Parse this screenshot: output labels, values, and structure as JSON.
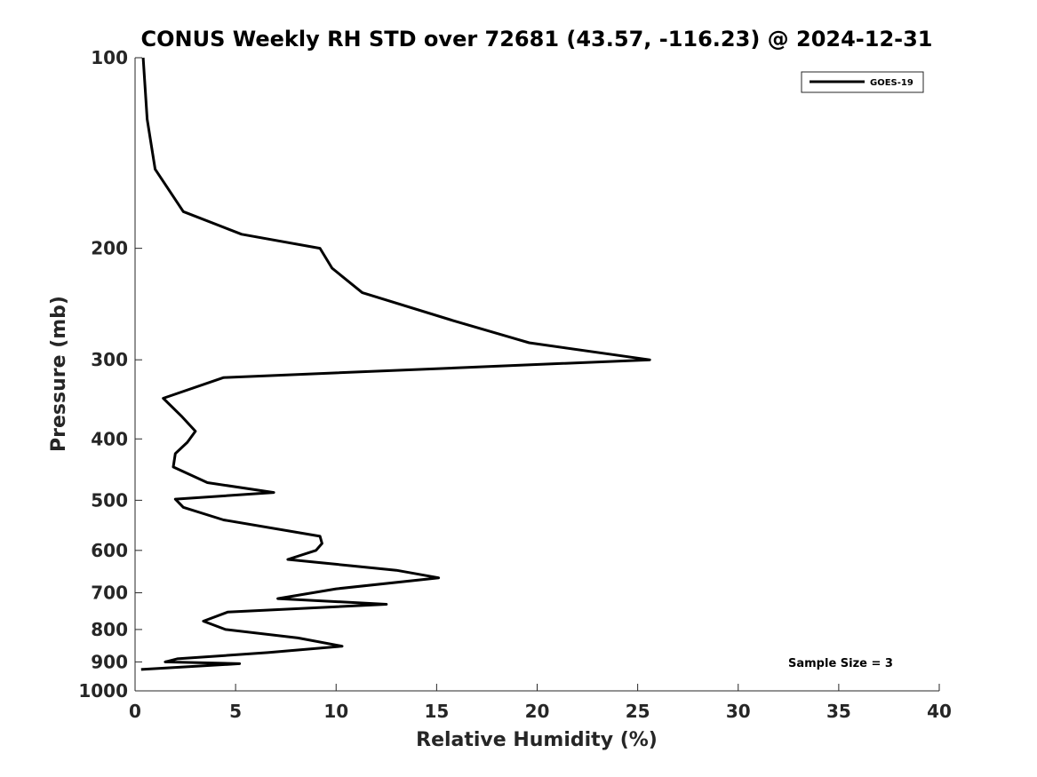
{
  "chart_data": {
    "type": "line",
    "title": "CONUS Weekly RH STD over 72681 (43.57, -116.23) @ 2024-12-31",
    "xlabel": "Relative Humidity (%)",
    "ylabel": "Pressure (mb)",
    "xlim": [
      0,
      40
    ],
    "ylim": [
      100,
      1000
    ],
    "y_scale": "log",
    "y_reversed": true,
    "x_ticks": [
      0,
      5,
      10,
      15,
      20,
      25,
      30,
      35,
      40
    ],
    "y_ticks": [
      100,
      200,
      300,
      400,
      500,
      600,
      700,
      800,
      900,
      1000
    ],
    "grid": false,
    "legend_position": "top-right",
    "annotation": "Sample Size = 3",
    "series": [
      {
        "name": "GOES-19",
        "color": "#000000",
        "points": [
          [
            0.4,
            100
          ],
          [
            0.6,
            125
          ],
          [
            1.0,
            150
          ],
          [
            2.4,
            175
          ],
          [
            5.3,
            190
          ],
          [
            9.2,
            200
          ],
          [
            9.8,
            215
          ],
          [
            11.3,
            235
          ],
          [
            15.8,
            260
          ],
          [
            19.6,
            282
          ],
          [
            25.6,
            300
          ],
          [
            4.4,
            320
          ],
          [
            1.4,
            345
          ],
          [
            2.3,
            368
          ],
          [
            3.0,
            389
          ],
          [
            2.6,
            405
          ],
          [
            2.0,
            422
          ],
          [
            1.9,
            443
          ],
          [
            3.6,
            469
          ],
          [
            6.9,
            486
          ],
          [
            2.0,
            498
          ],
          [
            2.4,
            513
          ],
          [
            4.4,
            537
          ],
          [
            9.2,
            570
          ],
          [
            9.3,
            585
          ],
          [
            9.0,
            600
          ],
          [
            7.6,
            620
          ],
          [
            13.0,
            645
          ],
          [
            15.1,
            663
          ],
          [
            10.0,
            690
          ],
          [
            7.1,
            715
          ],
          [
            12.5,
            730
          ],
          [
            4.6,
            751
          ],
          [
            3.4,
            776
          ],
          [
            4.5,
            800
          ],
          [
            8.1,
            825
          ],
          [
            10.3,
            850
          ],
          [
            6.6,
            870
          ],
          [
            2.1,
            890
          ],
          [
            1.5,
            900
          ],
          [
            5.2,
            906
          ],
          [
            0.3,
            925
          ]
        ]
      }
    ]
  }
}
